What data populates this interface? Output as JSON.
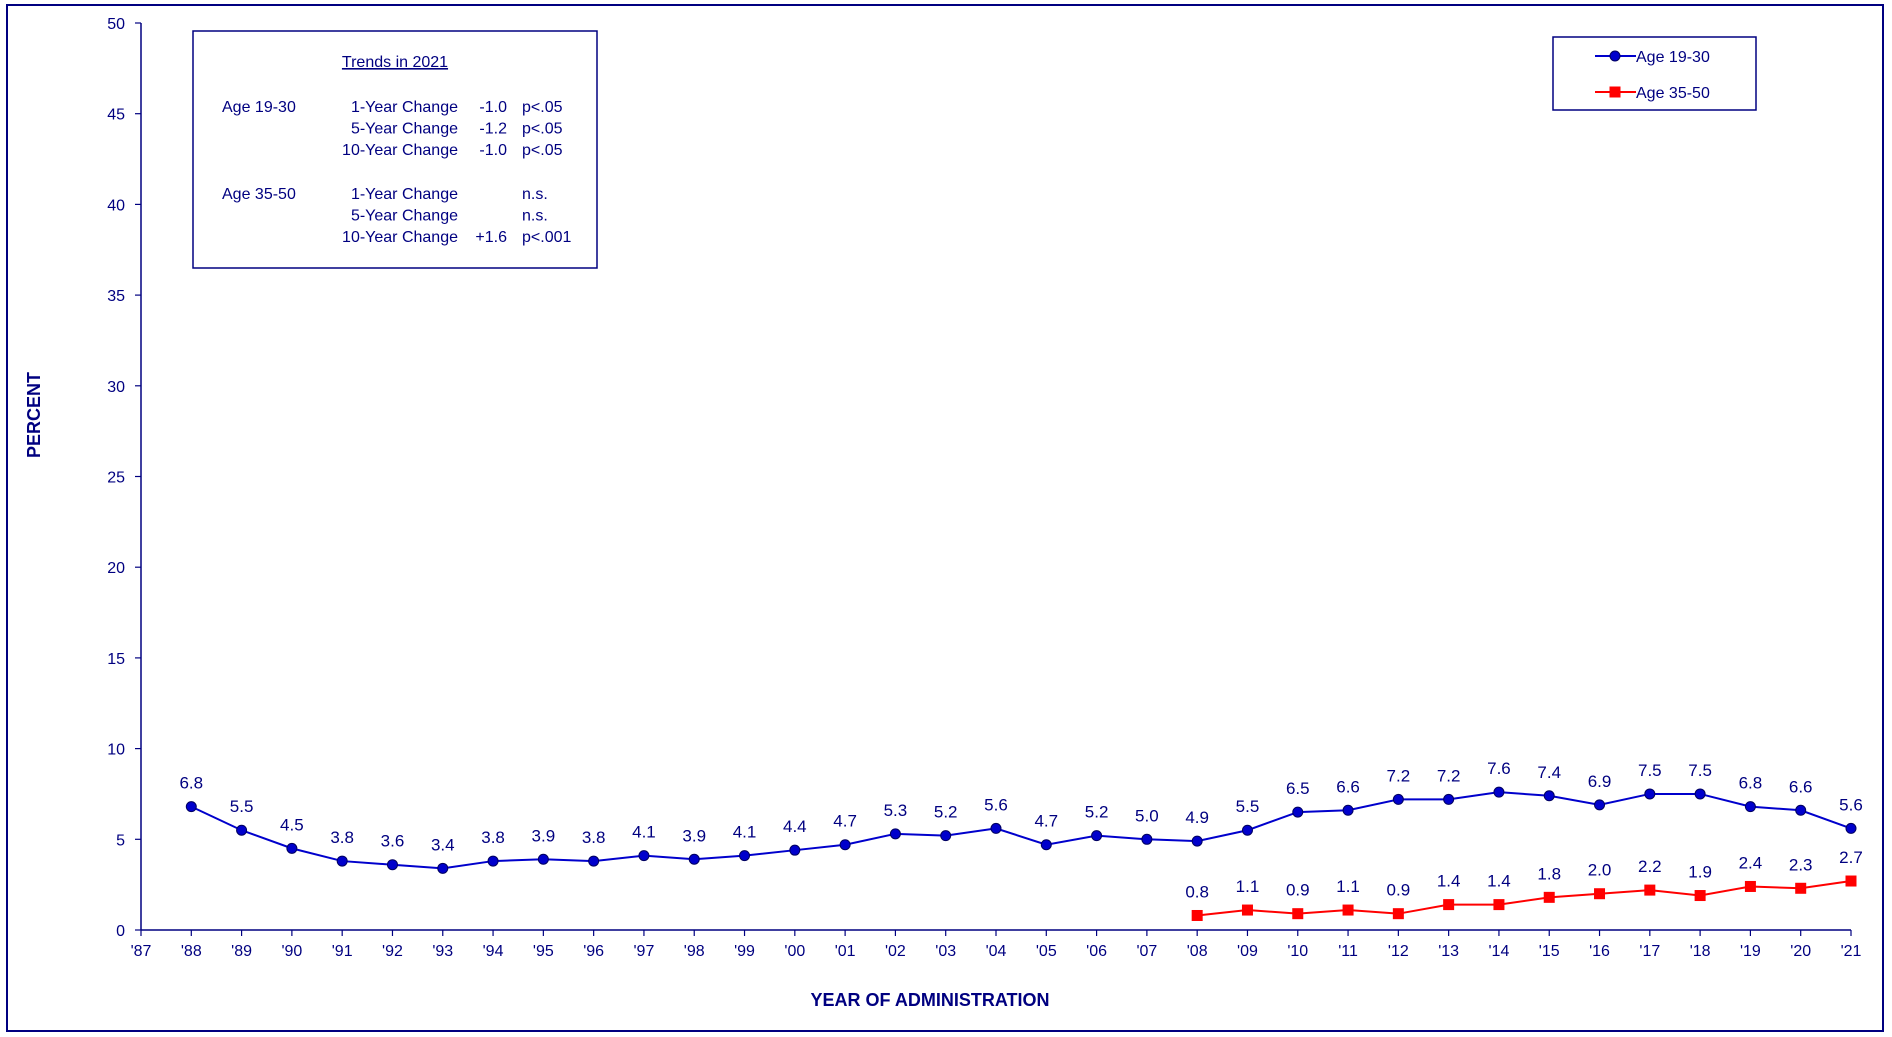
{
  "chart_data": {
    "type": "line",
    "ylabel": "PERCENT",
    "xlabel": "YEAR OF ADMINISTRATION",
    "ylim": [
      0,
      50
    ],
    "yticks": [
      0,
      5,
      10,
      15,
      20,
      25,
      30,
      35,
      40,
      45,
      50
    ],
    "x": [
      "'87",
      "'88",
      "'89",
      "'90",
      "'91",
      "'92",
      "'93",
      "'94",
      "'95",
      "'96",
      "'97",
      "'98",
      "'99",
      "'00",
      "'01",
      "'02",
      "'03",
      "'04",
      "'05",
      "'06",
      "'07",
      "'08",
      "'09",
      "'10",
      "'11",
      "'12",
      "'13",
      "'14",
      "'15",
      "'16",
      "'17",
      "'18",
      "'19",
      "'20",
      "'21"
    ],
    "grid": false,
    "legend_position": "top-right",
    "series": [
      {
        "name": "Age 19-30",
        "color": "#0000CC",
        "marker": "circle",
        "values": [
          null,
          6.8,
          5.5,
          4.5,
          3.8,
          3.6,
          3.4,
          3.8,
          3.9,
          3.8,
          4.1,
          3.9,
          4.1,
          4.4,
          4.7,
          5.3,
          5.2,
          5.6,
          4.7,
          5.2,
          5.0,
          4.9,
          5.5,
          6.5,
          6.6,
          7.2,
          7.2,
          7.6,
          7.4,
          6.9,
          7.5,
          7.5,
          6.8,
          6.6,
          5.6
        ],
        "labels": [
          null,
          "6.8",
          "5.5",
          "4.5",
          "3.8",
          "3.6",
          "3.4",
          "3.8",
          "3.9",
          "3.8",
          "4.1",
          "3.9",
          "4.1",
          "4.4",
          "4.7",
          "5.3",
          "5.2",
          "5.6",
          "4.7",
          "5.2",
          "5.0",
          "4.9",
          "5.5",
          "6.5",
          "6.6",
          "7.2",
          "7.2",
          "7.6",
          "7.4",
          "6.9",
          "7.5",
          "7.5",
          "6.8",
          "6.6",
          "5.6"
        ]
      },
      {
        "name": "Age 35-50",
        "color": "#FF0000",
        "marker": "square",
        "values": [
          null,
          null,
          null,
          null,
          null,
          null,
          null,
          null,
          null,
          null,
          null,
          null,
          null,
          null,
          null,
          null,
          null,
          null,
          null,
          null,
          null,
          0.8,
          1.1,
          0.9,
          1.1,
          0.9,
          1.4,
          1.4,
          1.8,
          2.0,
          2.2,
          1.9,
          2.4,
          2.3,
          2.7
        ],
        "labels": [
          null,
          null,
          null,
          null,
          null,
          null,
          null,
          null,
          null,
          null,
          null,
          null,
          null,
          null,
          null,
          null,
          null,
          null,
          null,
          null,
          null,
          "0.8",
          "1.1",
          "0.9",
          "1.1",
          "0.9",
          "1.4",
          "1.4",
          "1.8",
          "2.0",
          "2.2",
          "1.9",
          "2.4",
          "2.3",
          "2.7"
        ]
      }
    ],
    "annotation": {
      "title": "Trends in 2021",
      "groups": [
        {
          "group": "Age 19-30",
          "rows": [
            {
              "label": "1-Year Change",
              "value": "-1.0",
              "sig": "p<.05"
            },
            {
              "label": "5-Year Change",
              "value": "-1.2",
              "sig": "p<.05"
            },
            {
              "label": "10-Year Change",
              "value": "-1.0",
              "sig": "p<.05"
            }
          ]
        },
        {
          "group": "Age 35-50",
          "rows": [
            {
              "label": "1-Year Change",
              "value": "",
              "sig": "n.s."
            },
            {
              "label": "5-Year Change",
              "value": "",
              "sig": "n.s."
            },
            {
              "label": "10-Year Change",
              "value": "+1.6",
              "sig": "p<.001"
            }
          ]
        }
      ]
    }
  }
}
